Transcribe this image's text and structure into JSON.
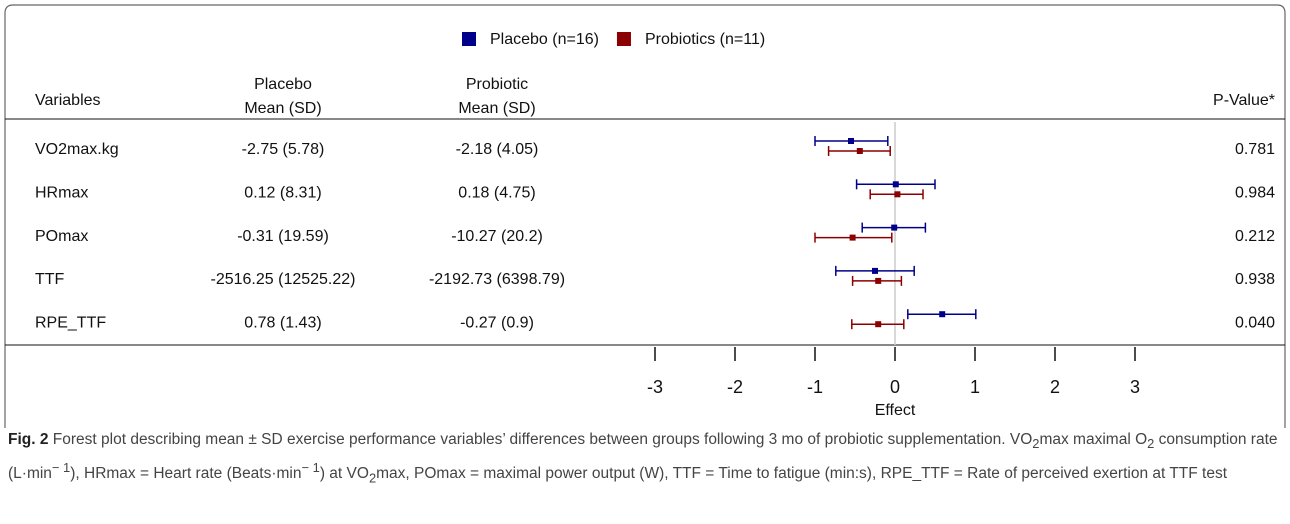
{
  "chart_data": {
    "type": "forest",
    "columns": {
      "variables": "Variables",
      "placebo": [
        "Placebo",
        "Mean (SD)"
      ],
      "probiotic": [
        "Probiotic",
        "Mean (SD)"
      ],
      "pvalue": "P-Value*"
    },
    "categories": [
      "VO2max.kg",
      "HRmax",
      "POmax",
      "TTF",
      "RPE_TTF"
    ],
    "placebo_text": [
      "-2.75 (5.78)",
      "0.12 (8.31)",
      "-0.31 (19.59)",
      "-2516.25 (12525.22)",
      "0.78 (1.43)"
    ],
    "probiotic_text": [
      "-2.18 (4.05)",
      "0.18 (4.75)",
      "-10.27 (20.2)",
      "-2192.73 (6398.79)",
      "-0.27 (0.9)"
    ],
    "pvalues": [
      "0.781",
      "0.984",
      "0.212",
      "0.938",
      "0.040"
    ],
    "series": [
      {
        "name": "Placebo (n=16)",
        "color": "#00008b",
        "values": [
          -0.55,
          0.01,
          -0.01,
          -0.25,
          0.59
        ],
        "lower": [
          -1.0,
          -0.48,
          -0.41,
          -0.74,
          0.16
        ],
        "upper": [
          -0.09,
          0.5,
          0.38,
          0.24,
          1.01
        ]
      },
      {
        "name": "Probiotics (n=11)",
        "color": "#8b0000",
        "values": [
          -0.44,
          0.03,
          -0.53,
          -0.21,
          -0.21
        ],
        "lower": [
          -0.83,
          -0.31,
          -1.0,
          -0.53,
          -0.54
        ],
        "upper": [
          -0.06,
          0.35,
          -0.04,
          0.08,
          0.11
        ]
      }
    ],
    "xlim": [
      -3,
      3
    ],
    "xticks": [
      -3,
      -2,
      -1,
      0,
      1,
      2,
      3
    ],
    "xlabel": "Effect",
    "caption": {
      "label": "Fig. 2",
      "parts": [
        " Forest plot describing mean ± SD exercise performance variables’ differences between groups following 3 mo of probiotic supplementation. VO",
        "2",
        "max maximal O",
        "2",
        " consumption rate (L·min",
        "− 1",
        "), HRmax = Heart rate (Beats·min",
        "− 1",
        ") at VO",
        "2",
        "max, POmax = maximal power output (W), TTF = Time to fatigue (min:s), RPE_TTF = Rate of perceived exertion at TTF test"
      ]
    }
  }
}
